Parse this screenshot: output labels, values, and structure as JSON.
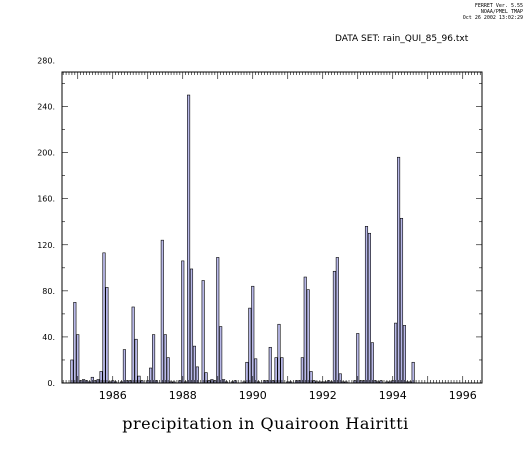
{
  "header": {
    "line1": "FERRET Ver. 5.55",
    "line2": "NOAA/PMEL TMAP",
    "line3": "Oct 26 2002 13:02:29",
    "dataset": "DATA SET: rain_QUI_85_96.txt"
  },
  "caption": "precipitation in Quairoon Hairitti",
  "colors": {
    "bar_fill": "#b8b8e8",
    "bar_stroke": "#000000"
  },
  "chart_data": {
    "type": "bar",
    "title": "precipitation in Quairoon Hairitti",
    "xlabel": "",
    "ylabel": "",
    "xlim": [
      1984.55,
      1996.55
    ],
    "ylim": [
      0,
      270
    ],
    "x_ticks": [
      "1986",
      "1988",
      "1990",
      "1992",
      "1994",
      "1996"
    ],
    "y_ticks": [
      "0.",
      "40.",
      "80.",
      "120.",
      "160.",
      "200.",
      "240.",
      "280."
    ],
    "grid": false,
    "series": [
      {
        "start": "1984-09",
        "frequency": "monthly",
        "values": [
          0,
          0,
          20,
          70,
          42,
          2,
          3,
          2,
          1,
          5,
          2,
          3,
          10,
          113,
          83,
          1,
          2,
          1,
          0,
          1,
          29,
          2,
          2,
          66,
          38,
          6,
          2,
          0,
          2,
          13,
          42,
          2,
          0,
          124,
          42,
          22,
          1,
          1,
          0,
          2,
          106,
          1,
          250,
          99,
          32,
          14,
          0,
          89,
          9,
          2,
          3,
          2,
          109,
          49,
          3,
          1,
          0,
          1,
          2,
          0,
          0,
          1,
          18,
          65,
          84,
          21,
          1,
          0,
          2,
          2,
          31,
          2,
          22,
          51,
          22,
          0,
          1,
          1,
          0,
          2,
          2,
          22,
          92,
          81,
          10,
          2,
          1,
          1,
          1,
          1,
          2,
          1,
          97,
          109,
          8,
          1,
          1,
          0,
          0,
          2,
          43,
          2,
          2,
          136,
          130,
          35,
          2,
          1,
          2,
          0,
          1,
          1,
          2,
          52,
          196,
          143,
          50,
          1,
          1,
          18
        ]
      }
    ]
  }
}
